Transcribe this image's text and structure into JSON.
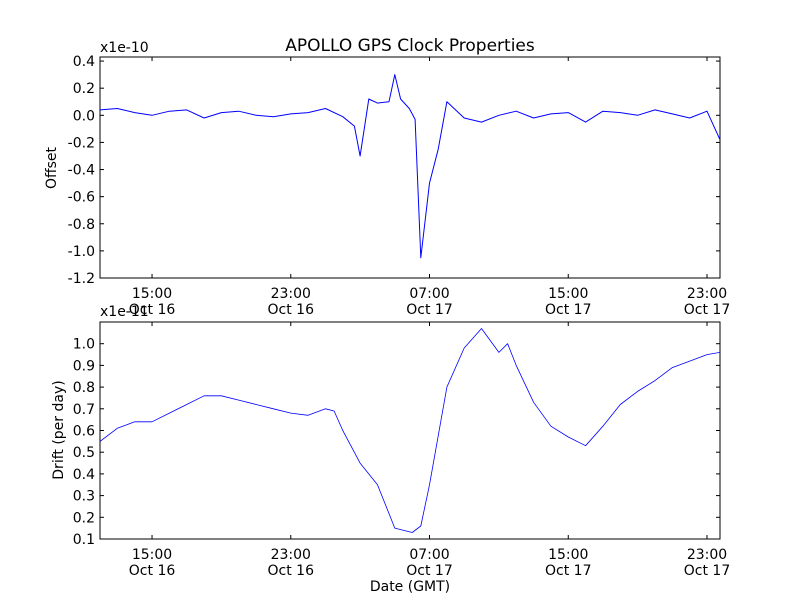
{
  "chart_data": [
    {
      "type": "line",
      "title": "APOLLO GPS Clock Properties",
      "ylabel": "Offset",
      "y_multiplier": "x1e-10",
      "ylim": [
        -1.2,
        0.43
      ],
      "y_ticks": [
        0.4,
        0.2,
        0.0,
        -0.2,
        -0.4,
        -0.6,
        -0.8,
        -1.0,
        -1.2
      ],
      "y_tick_labels": [
        "0.4",
        "0.2",
        "0.0",
        "-0.2",
        "-0.4",
        "-0.6",
        "-0.8",
        "-1.0",
        "-1.2"
      ],
      "x_ticks": [
        {
          "time": "15:00",
          "date": "Oct 16"
        },
        {
          "time": "23:00",
          "date": "Oct 16"
        },
        {
          "time": "07:00",
          "date": "Oct 17"
        },
        {
          "time": "15:00",
          "date": "Oct 17"
        },
        {
          "time": "23:00",
          "date": "Oct 17"
        }
      ],
      "xlim": [
        "2013-10-16 12:00",
        "2013-10-17 23:45"
      ],
      "series": [
        {
          "color": "#0000ff",
          "x": [
            "2013-10-16 12:00",
            "2013-10-16 13:00",
            "2013-10-16 14:00",
            "2013-10-16 15:00",
            "2013-10-16 16:00",
            "2013-10-16 17:00",
            "2013-10-16 18:00",
            "2013-10-16 19:00",
            "2013-10-16 20:00",
            "2013-10-16 21:00",
            "2013-10-16 22:00",
            "2013-10-16 23:00",
            "2013-10-17 00:00",
            "2013-10-17 01:00",
            "2013-10-17 02:00",
            "2013-10-17 02:40",
            "2013-10-17 03:00",
            "2013-10-17 03:30",
            "2013-10-17 04:00",
            "2013-10-17 04:40",
            "2013-10-17 05:00",
            "2013-10-17 05:20",
            "2013-10-17 05:50",
            "2013-10-17 06:10",
            "2013-10-17 06:30",
            "2013-10-17 07:00",
            "2013-10-17 07:30",
            "2013-10-17 08:00",
            "2013-10-17 09:00",
            "2013-10-17 10:00",
            "2013-10-17 11:00",
            "2013-10-17 12:00",
            "2013-10-17 13:00",
            "2013-10-17 14:00",
            "2013-10-17 15:00",
            "2013-10-17 16:00",
            "2013-10-17 17:00",
            "2013-10-17 18:00",
            "2013-10-17 19:00",
            "2013-10-17 20:00",
            "2013-10-17 21:00",
            "2013-10-17 22:00",
            "2013-10-17 23:00",
            "2013-10-17 23:45"
          ],
          "y": [
            0.04,
            0.05,
            0.02,
            0.0,
            0.03,
            0.04,
            -0.02,
            0.02,
            0.03,
            0.0,
            -0.01,
            0.01,
            0.02,
            0.05,
            -0.01,
            -0.08,
            -0.3,
            0.12,
            0.09,
            0.1,
            0.3,
            0.12,
            0.05,
            -0.03,
            -1.05,
            -0.5,
            -0.25,
            0.1,
            -0.02,
            -0.05,
            0.0,
            0.03,
            -0.02,
            0.01,
            0.02,
            -0.05,
            0.03,
            0.02,
            0.0,
            0.04,
            0.01,
            -0.02,
            0.03,
            -0.18
          ]
        }
      ]
    },
    {
      "type": "line",
      "title": "",
      "xlabel": "Date (GMT)",
      "ylabel": "Drift (per day)",
      "y_multiplier": "x1e-11",
      "ylim": [
        0.1,
        1.1
      ],
      "y_ticks": [
        1.0,
        0.9,
        0.8,
        0.7,
        0.6,
        0.5,
        0.4,
        0.3,
        0.2,
        0.1
      ],
      "y_tick_labels": [
        "1.0",
        "0.9",
        "0.8",
        "0.7",
        "0.6",
        "0.5",
        "0.4",
        "0.3",
        "0.2",
        "0.1"
      ],
      "x_ticks": [
        {
          "time": "15:00",
          "date": "Oct 16"
        },
        {
          "time": "23:00",
          "date": "Oct 16"
        },
        {
          "time": "07:00",
          "date": "Oct 17"
        },
        {
          "time": "15:00",
          "date": "Oct 17"
        },
        {
          "time": "23:00",
          "date": "Oct 17"
        }
      ],
      "xlim": [
        "2013-10-16 12:00",
        "2013-10-17 23:45"
      ],
      "series": [
        {
          "color": "#0000ff",
          "x": [
            "2013-10-16 12:00",
            "2013-10-16 13:00",
            "2013-10-16 14:00",
            "2013-10-16 15:00",
            "2013-10-16 16:00",
            "2013-10-16 17:00",
            "2013-10-16 18:00",
            "2013-10-16 19:00",
            "2013-10-16 20:00",
            "2013-10-16 21:00",
            "2013-10-16 22:00",
            "2013-10-16 23:00",
            "2013-10-17 00:00",
            "2013-10-17 01:00",
            "2013-10-17 01:30",
            "2013-10-17 02:00",
            "2013-10-17 03:00",
            "2013-10-17 04:00",
            "2013-10-17 05:00",
            "2013-10-17 06:00",
            "2013-10-17 06:30",
            "2013-10-17 07:00",
            "2013-10-17 08:00",
            "2013-10-17 09:00",
            "2013-10-17 10:00",
            "2013-10-17 11:00",
            "2013-10-17 11:30",
            "2013-10-17 12:00",
            "2013-10-17 13:00",
            "2013-10-17 14:00",
            "2013-10-17 15:00",
            "2013-10-17 16:00",
            "2013-10-17 17:00",
            "2013-10-17 18:00",
            "2013-10-17 19:00",
            "2013-10-17 20:00",
            "2013-10-17 21:00",
            "2013-10-17 22:00",
            "2013-10-17 23:00",
            "2013-10-17 23:45"
          ],
          "y": [
            0.55,
            0.61,
            0.64,
            0.64,
            0.68,
            0.72,
            0.76,
            0.76,
            0.74,
            0.72,
            0.7,
            0.68,
            0.67,
            0.7,
            0.69,
            0.6,
            0.45,
            0.35,
            0.15,
            0.13,
            0.16,
            0.35,
            0.8,
            0.98,
            1.07,
            0.96,
            1.0,
            0.9,
            0.73,
            0.62,
            0.57,
            0.53,
            0.62,
            0.72,
            0.78,
            0.83,
            0.89,
            0.92,
            0.95,
            0.96
          ]
        }
      ]
    }
  ]
}
